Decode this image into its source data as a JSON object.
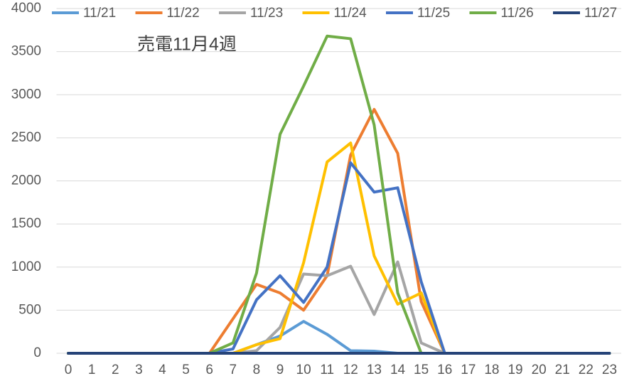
{
  "chart_data": {
    "type": "line",
    "title": "売電11月4週",
    "categories": [
      "0",
      "1",
      "2",
      "3",
      "4",
      "5",
      "6",
      "7",
      "8",
      "9",
      "10",
      "11",
      "12",
      "13",
      "14",
      "15",
      "16",
      "17",
      "18",
      "19",
      "20",
      "21",
      "22",
      "23"
    ],
    "ylim": [
      0,
      4000
    ],
    "yticks": [
      0,
      500,
      1000,
      1500,
      2000,
      2500,
      3000,
      3500,
      4000
    ],
    "grid": true,
    "legend": "top",
    "series": [
      {
        "name": "11/21",
        "color": "#5b9bd5",
        "values": [
          0,
          0,
          0,
          0,
          0,
          0,
          0,
          0,
          100,
          200,
          370,
          220,
          30,
          25,
          0,
          0,
          0,
          0,
          0,
          0,
          0,
          0,
          0,
          0
        ]
      },
      {
        "name": "11/22",
        "color": "#ed7d31",
        "values": [
          0,
          0,
          0,
          0,
          0,
          0,
          0,
          400,
          800,
          700,
          500,
          900,
          2300,
          2830,
          2320,
          600,
          0,
          0,
          0,
          0,
          0,
          0,
          0,
          0
        ]
      },
      {
        "name": "11/23",
        "color": "#a5a5a5",
        "values": [
          0,
          0,
          0,
          0,
          0,
          0,
          0,
          0,
          30,
          300,
          920,
          900,
          1010,
          450,
          1060,
          120,
          0,
          0,
          0,
          0,
          0,
          0,
          0,
          0
        ]
      },
      {
        "name": "11/24",
        "color": "#ffc000",
        "values": [
          0,
          0,
          0,
          0,
          0,
          0,
          0,
          0,
          100,
          170,
          1050,
          2220,
          2440,
          1130,
          570,
          700,
          0,
          0,
          0,
          0,
          0,
          0,
          0,
          0
        ]
      },
      {
        "name": "11/25",
        "color": "#4472c4",
        "values": [
          0,
          0,
          0,
          0,
          0,
          0,
          0,
          50,
          620,
          900,
          590,
          1000,
          2210,
          1870,
          1920,
          830,
          0,
          0,
          0,
          0,
          0,
          0,
          0,
          0
        ]
      },
      {
        "name": "11/26",
        "color": "#70ad47",
        "values": [
          0,
          0,
          0,
          0,
          0,
          0,
          0,
          120,
          930,
          2540,
          3100,
          3680,
          3650,
          2650,
          700,
          0,
          0,
          0,
          0,
          0,
          0,
          0,
          0,
          0
        ]
      },
      {
        "name": "11/27",
        "color": "#264478",
        "values": [
          0,
          0,
          0,
          0,
          0,
          0,
          0,
          0,
          0,
          0,
          0,
          0,
          0,
          0,
          0,
          0,
          0,
          0,
          0,
          0,
          0,
          0,
          0,
          0
        ]
      }
    ]
  }
}
